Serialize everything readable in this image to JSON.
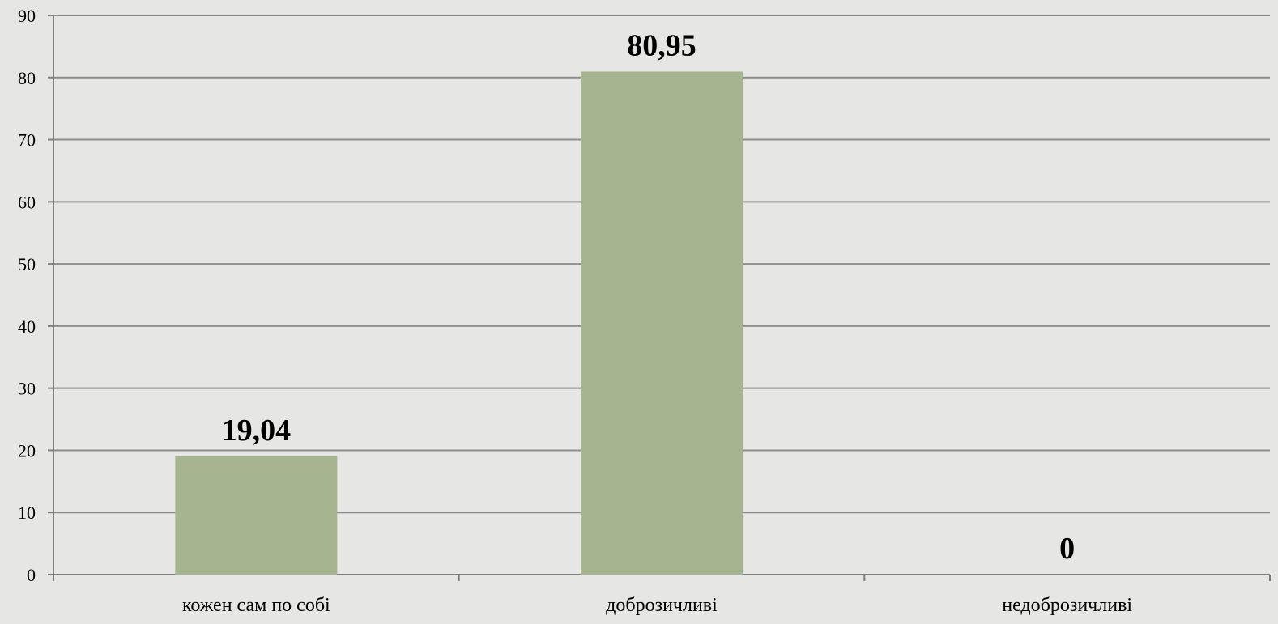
{
  "chart_data": {
    "type": "bar",
    "categories": [
      "кожен сам по собі",
      "доброзичливі",
      "недоброзичливі"
    ],
    "values": [
      19.04,
      80.95,
      0
    ],
    "value_labels": [
      "19,04",
      "80,95",
      "0"
    ],
    "title": "",
    "xlabel": "",
    "ylabel": "",
    "ylim": [
      0,
      90
    ],
    "yticks": [
      0,
      10,
      20,
      30,
      40,
      50,
      60,
      70,
      80,
      90
    ],
    "ytick_labels": [
      "0",
      "10",
      "20",
      "30",
      "40",
      "50",
      "60",
      "70",
      "80",
      "90"
    ],
    "grid": true,
    "legend": "none",
    "colors": {
      "bar": "#a6b490",
      "grid": "#8c8c8c",
      "axis": "#808080",
      "background": "#e6e6e4"
    }
  }
}
